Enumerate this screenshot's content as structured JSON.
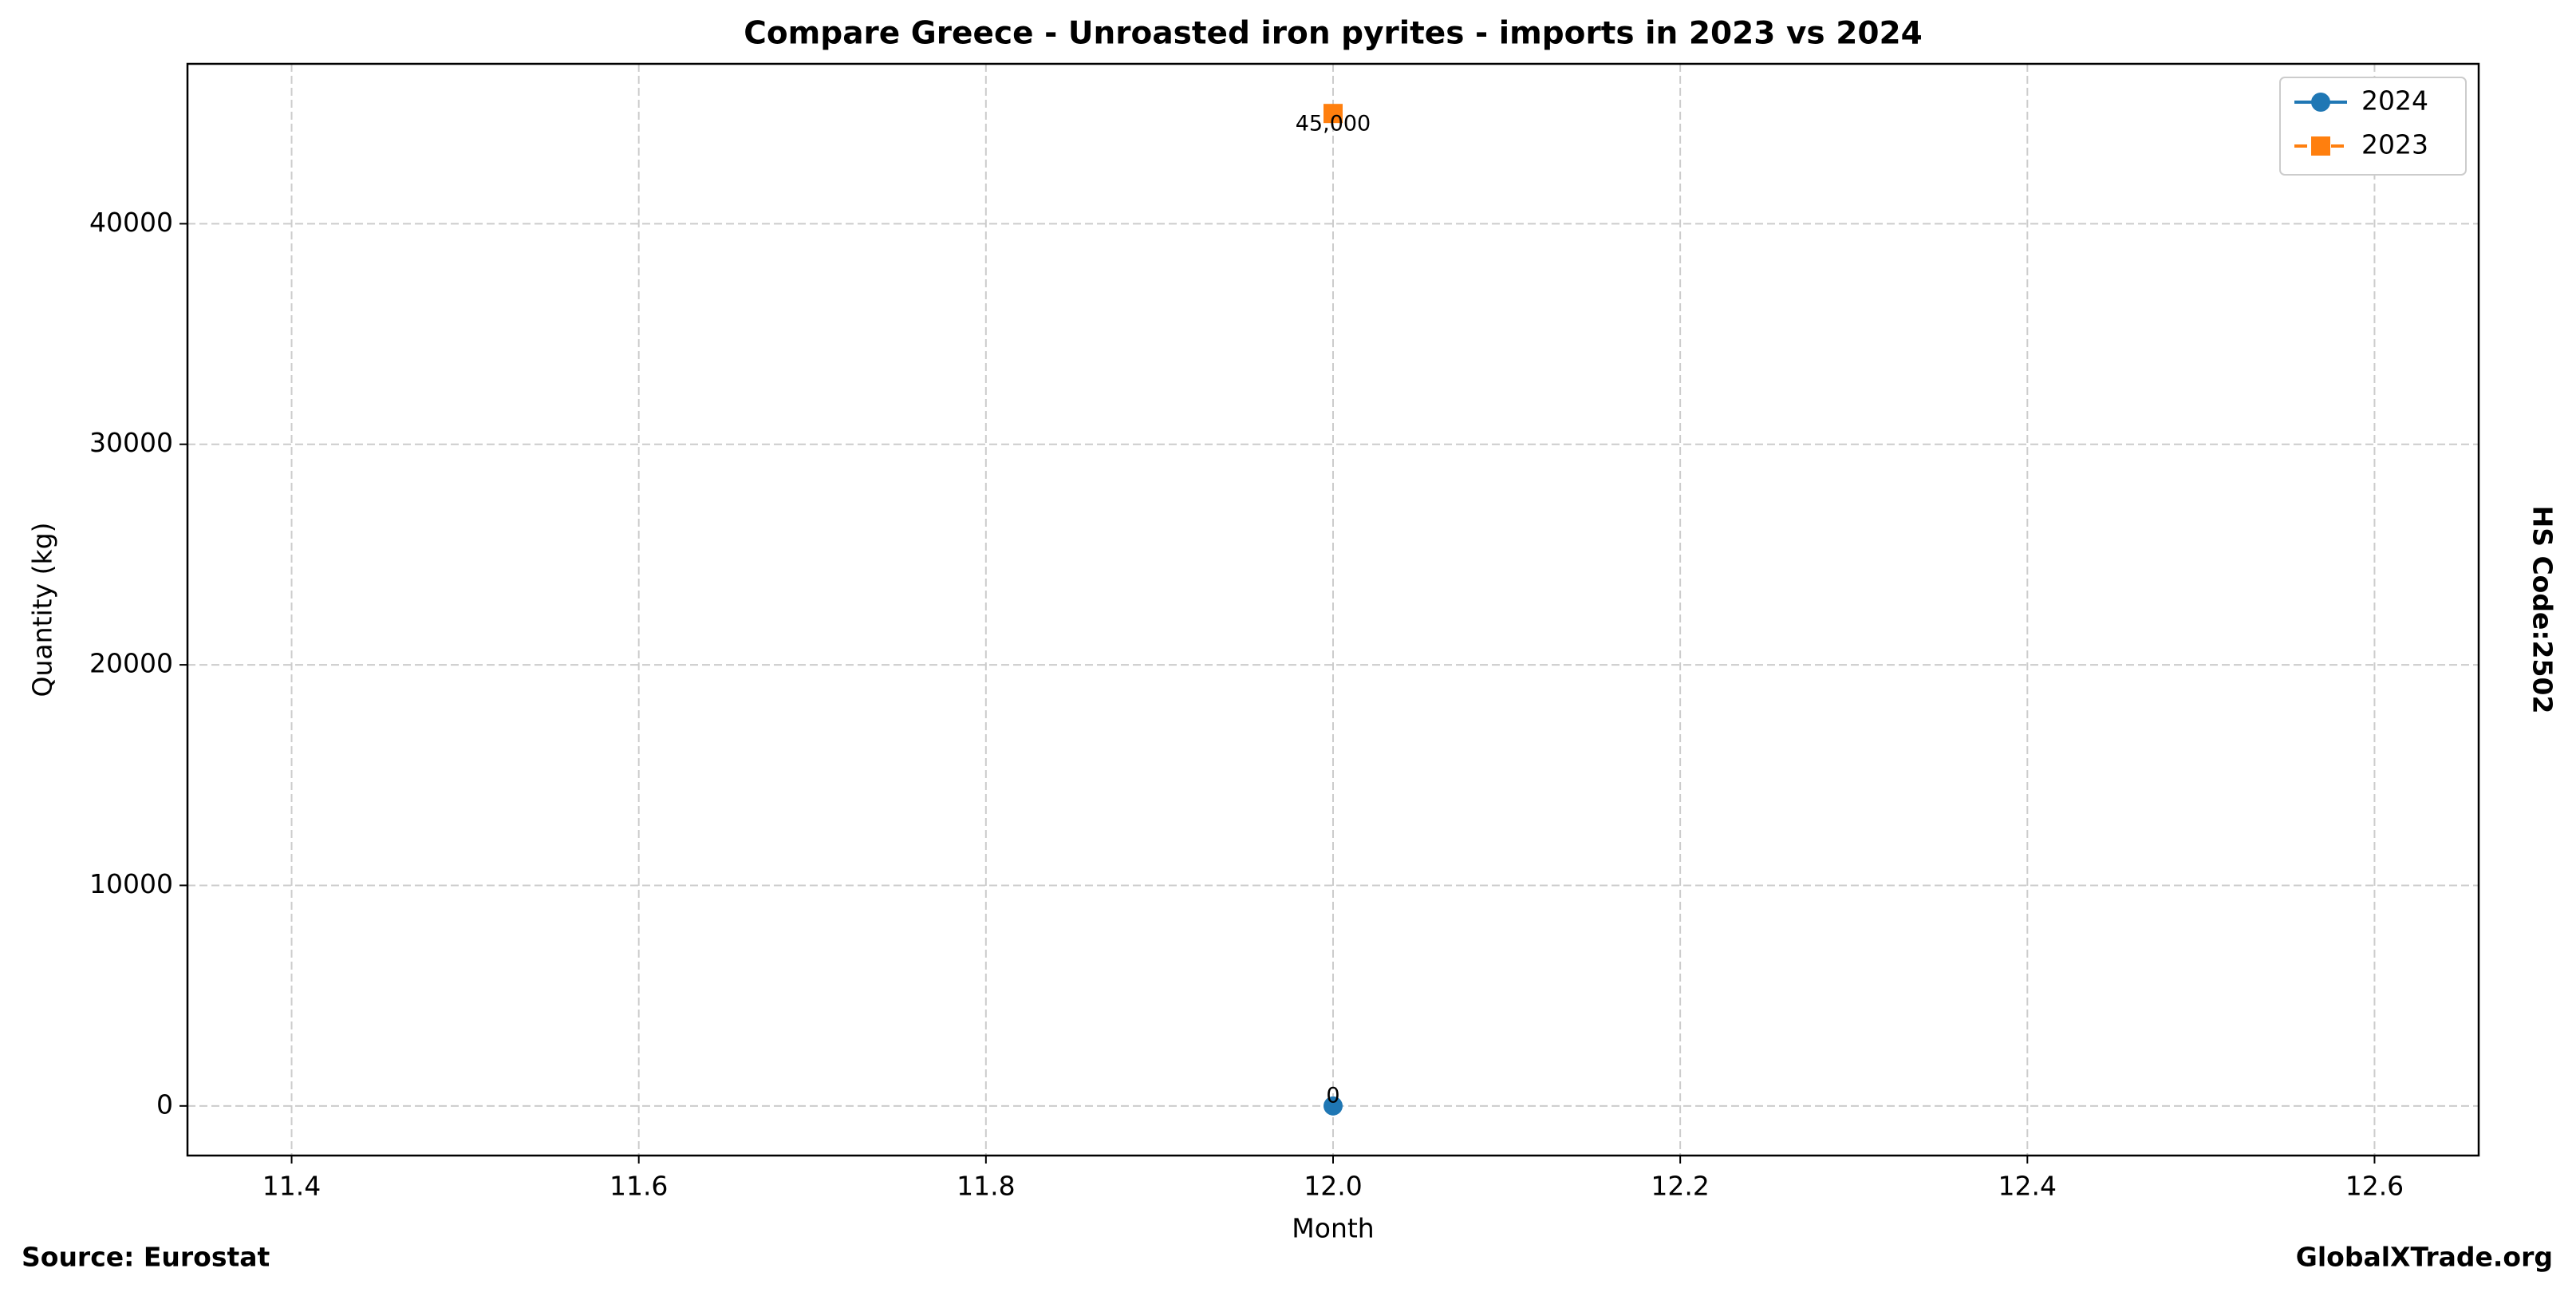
{
  "chart_data": {
    "type": "line",
    "title": "Compare Greece - Unroasted iron pyrites - imports in 2023 vs 2024",
    "x_label": "Month",
    "y_label": "Quantity (kg)",
    "side_note": "HS Code:2502",
    "source": "Source: Eurostat",
    "brand": "GlobalXTrade.org",
    "x": [
      12
    ],
    "series": [
      {
        "name": "2024",
        "color": "#1f77b4",
        "marker": "circle",
        "dashed": false,
        "values": [
          0
        ],
        "value_labels": [
          "0"
        ]
      },
      {
        "name": "2023",
        "color": "#ff7f0e",
        "marker": "square",
        "dashed": true,
        "values": [
          45000
        ],
        "value_labels": [
          "45,000"
        ]
      }
    ],
    "xlim": [
      11.34,
      12.66
    ],
    "xticks": [
      11.4,
      11.6,
      11.8,
      {
        "value": 12,
        "label": "12.0"
      },
      12.2,
      12.4,
      12.6
    ],
    "ylim": [
      -2250,
      47250
    ],
    "yticks": [
      0,
      10000,
      20000,
      30000,
      40000
    ],
    "grid": true,
    "legend": "upper right"
  }
}
